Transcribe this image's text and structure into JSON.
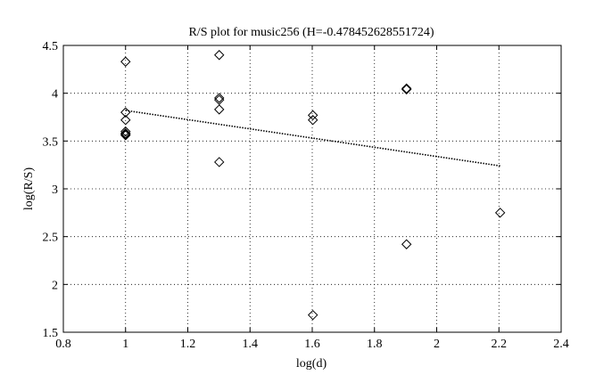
{
  "chart_data": {
    "type": "scatter",
    "title": "R/S plot for music256 (H=-0.478452628551724)",
    "xlabel": "log(d)",
    "ylabel": "log(R/S)",
    "xlim": [
      0.8,
      2.4
    ],
    "ylim": [
      1.5,
      4.5
    ],
    "xticks": [
      0.8,
      1,
      1.2,
      1.4,
      1.6,
      1.8,
      2,
      2.2,
      2.4
    ],
    "yticks": [
      1.5,
      2,
      2.5,
      3,
      3.5,
      4,
      4.5
    ],
    "xtick_labels": [
      "0.8",
      "1",
      "1.2",
      "1.4",
      "1.6",
      "1.8",
      "2",
      "2.2",
      "2.4"
    ],
    "ytick_labels": [
      "1.5",
      "2",
      "2.5",
      "3",
      "3.5",
      "4",
      "4.5"
    ],
    "grid": true,
    "marker": "diamond",
    "series": [
      {
        "x": [
          1,
          1,
          1,
          1,
          1,
          1,
          1,
          1.301,
          1.301,
          1.301,
          1.301,
          1.301,
          1.602,
          1.602,
          1.602,
          1.903,
          1.903,
          1.903,
          2.204
        ],
        "y": [
          4.33,
          3.8,
          3.72,
          3.6,
          3.58,
          3.57,
          3.56,
          4.4,
          3.95,
          3.93,
          3.83,
          3.28,
          3.77,
          3.72,
          1.68,
          4.05,
          4.04,
          2.42,
          2.75
        ]
      }
    ],
    "fit_line": {
      "style": "dotted",
      "x": [
        1,
        2.204
      ],
      "y": [
        3.82,
        3.24
      ]
    }
  }
}
